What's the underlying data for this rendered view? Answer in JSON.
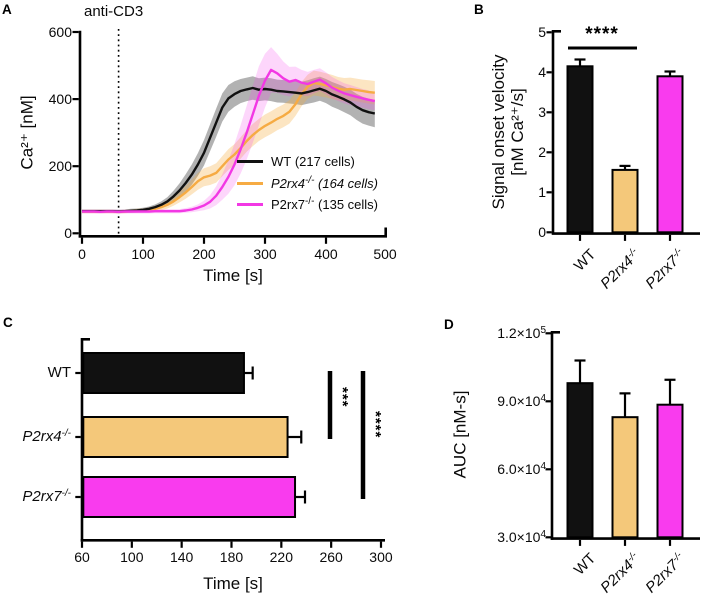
{
  "figure": {
    "background": "#ffffff",
    "panel_letters": [
      "A",
      "B",
      "C",
      "D"
    ]
  },
  "groups": [
    {
      "base": "WT",
      "sup": "",
      "italic": false
    },
    {
      "base": "P2rx4",
      "sup": "-/-",
      "italic": true
    },
    {
      "base": "P2rx7",
      "sup": "-/-",
      "italic": true
    }
  ],
  "colors": {
    "black_line": "#111111",
    "orange_line": "#F6AB43",
    "orange_fill": "#F4C87A",
    "magenta_line": "#F238E4",
    "magenta_fill": "#F93BEE"
  },
  "chart_data": [
    {
      "panel_letter": "A",
      "type": "line",
      "xlabel": "Time [s]",
      "ylabel": "Ca²⁺ [nM]",
      "xlim": [
        0,
        500
      ],
      "ylim": [
        0,
        600
      ],
      "xticks": [
        0,
        100,
        200,
        300,
        400,
        500
      ],
      "yticks": [
        0,
        200,
        400,
        600
      ],
      "annotation": {
        "label": "anti-CD3",
        "x": 60,
        "style": "dotted-vertical-line"
      },
      "legend": [
        {
          "name": "WT",
          "sup": "",
          "rest": " (217 cells)",
          "italic": false
        },
        {
          "name": "P2rx4",
          "sup": "-/-",
          "rest": " (164 cells)",
          "italic": true
        },
        {
          "name": "P2rx7",
          "sup": "-/-",
          "rest": " (135 cells)",
          "italic": false
        }
      ],
      "t": [
        0,
        10,
        20,
        30,
        40,
        50,
        60,
        70,
        80,
        90,
        100,
        110,
        120,
        130,
        140,
        150,
        160,
        170,
        180,
        190,
        200,
        210,
        220,
        230,
        240,
        250,
        260,
        270,
        280,
        290,
        300,
        310,
        320,
        330,
        340,
        350,
        360,
        370,
        380,
        390,
        400,
        410,
        420,
        430,
        440,
        450,
        460,
        470,
        480
      ],
      "series": [
        {
          "name": "WT (217 cells)",
          "color": "#111111",
          "band_color": "rgba(0,0,0,0.30)",
          "v": [
            66,
            66,
            66,
            66,
            66,
            66,
            65,
            66,
            67,
            68,
            70,
            73,
            78,
            85,
            95,
            110,
            128,
            150,
            175,
            205,
            240,
            285,
            330,
            375,
            402,
            415,
            424,
            429,
            433,
            428,
            430,
            428,
            424,
            423,
            421,
            419,
            417,
            421,
            426,
            431,
            424,
            414,
            407,
            399,
            390,
            377,
            367,
            361,
            357
          ],
          "band": [
            5,
            5,
            5,
            5,
            5,
            5,
            5,
            5,
            6,
            6,
            6,
            7,
            8,
            10,
            13,
            17,
            21,
            26,
            30,
            34,
            38,
            40,
            42,
            42,
            40,
            38,
            36,
            35,
            35,
            34,
            34,
            34,
            34,
            34,
            34,
            34,
            35,
            35,
            36,
            36,
            36,
            37,
            37,
            38,
            38,
            39,
            40,
            40,
            41
          ]
        },
        {
          "name": "P2rx4-/- (164 cells)",
          "color": "#F6AB43",
          "band_color": "rgba(246,174,64,0.32)",
          "v": [
            65,
            65,
            65,
            65,
            65,
            65,
            64,
            65,
            66,
            67,
            68,
            70,
            73,
            78,
            85,
            95,
            108,
            122,
            138,
            155,
            167,
            172,
            180,
            200,
            220,
            235,
            254,
            275,
            293,
            308,
            320,
            330,
            341,
            350,
            362,
            385,
            415,
            437,
            448,
            445,
            441,
            436,
            431,
            428,
            430,
            427,
            424,
            421,
            419
          ],
          "band": [
            5,
            5,
            5,
            5,
            5,
            5,
            5,
            5,
            5,
            6,
            6,
            7,
            8,
            9,
            11,
            13,
            16,
            19,
            22,
            25,
            27,
            28,
            29,
            30,
            31,
            31,
            32,
            32,
            33,
            33,
            34,
            34,
            34,
            34,
            35,
            35,
            36,
            36,
            37,
            37,
            36,
            36,
            35,
            35,
            34,
            34,
            34,
            35,
            35
          ]
        },
        {
          "name": "P2rx7-/- (135 cells)",
          "color": "#F238E4",
          "band_color": "rgba(246,70,235,0.22)",
          "v": [
            65,
            65,
            65,
            64,
            65,
            65,
            64,
            65,
            65,
            65,
            65,
            65,
            66,
            66,
            66,
            66,
            66,
            68,
            71,
            76,
            83,
            94,
            112,
            138,
            168,
            205,
            250,
            300,
            355,
            410,
            455,
            487,
            477,
            462,
            452,
            457,
            449,
            445,
            452,
            458,
            447,
            434,
            425,
            417,
            412,
            407,
            402,
            398,
            394
          ],
          "band": [
            6,
            6,
            6,
            6,
            6,
            6,
            6,
            6,
            6,
            6,
            6,
            6,
            6,
            6,
            6,
            6,
            6,
            7,
            8,
            10,
            14,
            20,
            28,
            38,
            50,
            62,
            72,
            80,
            85,
            88,
            80,
            68,
            58,
            50,
            44,
            40,
            38,
            36,
            35,
            34,
            33,
            32,
            31,
            30,
            30,
            29,
            28,
            28,
            27
          ]
        }
      ]
    },
    {
      "panel_letter": "B",
      "type": "bar",
      "ylabel_line1": "Signal onset velocity",
      "ylabel_line2": "[nM Ca²⁺/s]",
      "ylim": [
        0,
        5
      ],
      "yticks": [
        0,
        1,
        2,
        3,
        4,
        5
      ],
      "values": [
        4.15,
        1.56,
        3.9
      ],
      "errors": [
        0.17,
        0.1,
        0.12
      ],
      "bar_colors": [
        "#111111",
        "#F4C87A",
        "#F93BEE"
      ],
      "sig": {
        "label": "****",
        "from": 0,
        "to": 1
      }
    },
    {
      "panel_letter": "C",
      "type": "bar-horizontal",
      "xlabel": "Time [s]",
      "xlim": [
        60,
        300
      ],
      "xticks": [
        60,
        100,
        140,
        180,
        220,
        260,
        300
      ],
      "values": [
        190,
        225,
        231
      ],
      "errors": [
        7,
        11,
        8
      ],
      "bar_colors": [
        "#111111",
        "#F4C87A",
        "#F93BEE"
      ],
      "sig": [
        {
          "label": "***",
          "from": 0,
          "to": 1
        },
        {
          "label": "****",
          "from": 0,
          "to": 2
        }
      ]
    },
    {
      "panel_letter": "D",
      "type": "bar",
      "ylabel": "AUC [nM-s]",
      "ylim": [
        30000,
        120000
      ],
      "yticks": [
        {
          "v": 120000,
          "base": "1.2×10",
          "sup": "5"
        },
        {
          "v": 90000,
          "base": "9.0×10",
          "sup": "4"
        },
        {
          "v": 60000,
          "base": "6.0×10",
          "sup": "4"
        },
        {
          "v": 30000,
          "base": "3.0×10",
          "sup": "4"
        }
      ],
      "values": [
        98000,
        83000,
        88500
      ],
      "errors": [
        10000,
        10500,
        11000
      ],
      "bar_colors": [
        "#111111",
        "#F4C87A",
        "#F93BEE"
      ]
    }
  ]
}
